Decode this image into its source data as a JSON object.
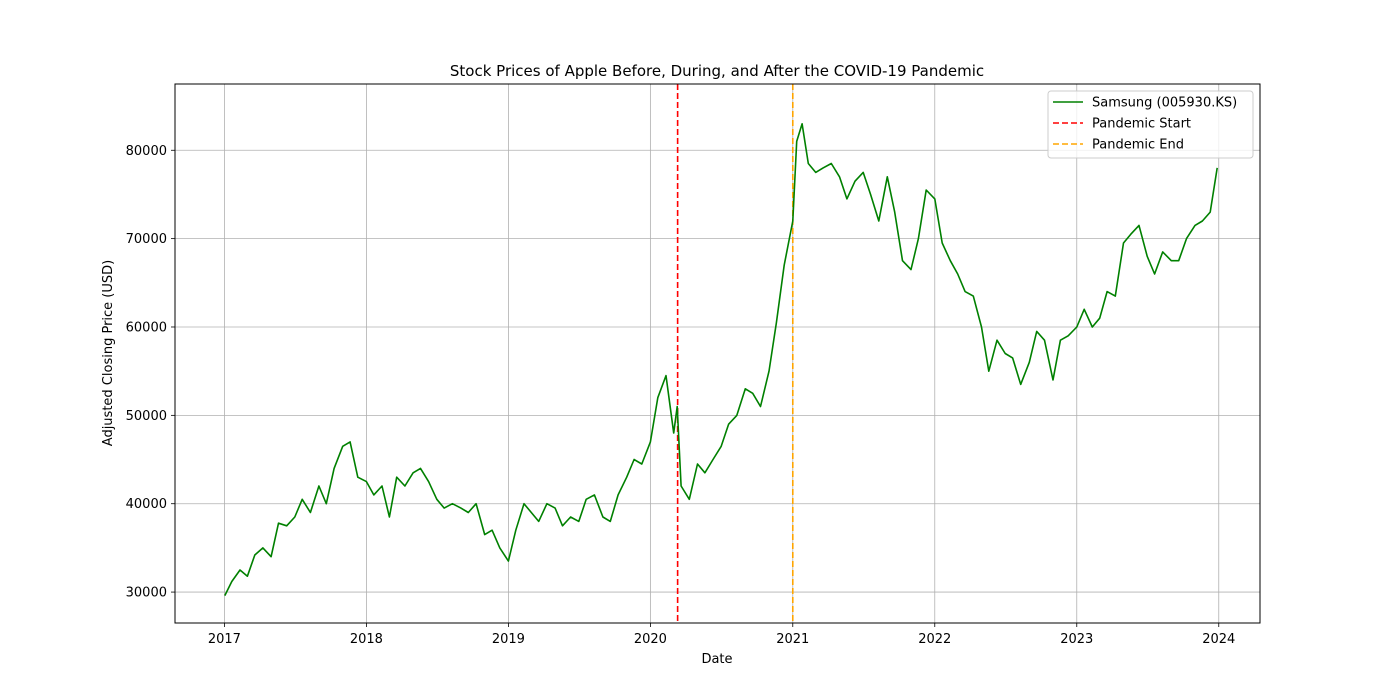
{
  "chart_data": {
    "type": "line",
    "title": "Stock Prices of Apple Before, During, and After the COVID-19 Pandemic",
    "xlabel": "Date",
    "ylabel": "Adjusted Closing Price (USD)",
    "xlim": [
      "2016-08-27",
      "2024-04-16"
    ],
    "ylim": [
      26500,
      87500
    ],
    "x_ticks": [
      "2017",
      "2018",
      "2019",
      "2020",
      "2021",
      "2022",
      "2023",
      "2024"
    ],
    "y_ticks": [
      30000,
      40000,
      50000,
      60000,
      70000,
      80000
    ],
    "y_tick_labels": [
      "30000",
      "40000",
      "50000",
      "60000",
      "70000",
      "80000"
    ],
    "grid": true,
    "legend_position": "top-right",
    "colors": {
      "series": "#008000",
      "pandemic_start": "#ff0000",
      "pandemic_end": "#ffa500",
      "grid": "#b0b0b0"
    },
    "series": [
      {
        "name": "Samsung (005930.KS)",
        "x": [
          "2017-01-02",
          "2017-01-20",
          "2017-02-10",
          "2017-03-01",
          "2017-03-20",
          "2017-04-10",
          "2017-05-01",
          "2017-05-20",
          "2017-06-10",
          "2017-07-01",
          "2017-07-20",
          "2017-08-10",
          "2017-09-01",
          "2017-09-20",
          "2017-10-10",
          "2017-11-01",
          "2017-11-20",
          "2017-12-10",
          "2018-01-01",
          "2018-01-20",
          "2018-02-10",
          "2018-03-01",
          "2018-03-20",
          "2018-04-10",
          "2018-05-01",
          "2018-05-20",
          "2018-06-10",
          "2018-07-01",
          "2018-07-20",
          "2018-08-10",
          "2018-09-01",
          "2018-09-20",
          "2018-10-10",
          "2018-11-01",
          "2018-11-20",
          "2018-12-10",
          "2019-01-01",
          "2019-01-20",
          "2019-02-10",
          "2019-03-01",
          "2019-03-20",
          "2019-04-10",
          "2019-05-01",
          "2019-05-20",
          "2019-06-10",
          "2019-07-01",
          "2019-07-20",
          "2019-08-10",
          "2019-09-01",
          "2019-09-20",
          "2019-10-10",
          "2019-11-01",
          "2019-11-20",
          "2019-12-10",
          "2020-01-01",
          "2020-01-20",
          "2020-02-10",
          "2020-03-01",
          "2020-03-10",
          "2020-03-20",
          "2020-04-10",
          "2020-05-01",
          "2020-05-20",
          "2020-06-10",
          "2020-07-01",
          "2020-07-20",
          "2020-08-10",
          "2020-09-01",
          "2020-09-20",
          "2020-10-10",
          "2020-11-01",
          "2020-11-20",
          "2020-12-10",
          "2021-01-01",
          "2021-01-11",
          "2021-01-25",
          "2021-02-10",
          "2021-03-01",
          "2021-03-20",
          "2021-04-10",
          "2021-05-01",
          "2021-05-20",
          "2021-06-10",
          "2021-07-01",
          "2021-07-20",
          "2021-08-10",
          "2021-09-01",
          "2021-09-20",
          "2021-10-10",
          "2021-11-01",
          "2021-11-20",
          "2021-12-10",
          "2022-01-01",
          "2022-01-20",
          "2022-02-10",
          "2022-03-01",
          "2022-03-20",
          "2022-04-10",
          "2022-05-01",
          "2022-05-20",
          "2022-06-10",
          "2022-07-01",
          "2022-07-20",
          "2022-08-10",
          "2022-09-01",
          "2022-09-20",
          "2022-10-10",
          "2022-11-01",
          "2022-11-20",
          "2022-12-10",
          "2023-01-01",
          "2023-01-20",
          "2023-02-10",
          "2023-03-01",
          "2023-03-20",
          "2023-04-10",
          "2023-05-01",
          "2023-05-20",
          "2023-06-10",
          "2023-07-01",
          "2023-07-20",
          "2023-08-10",
          "2023-09-01",
          "2023-09-20",
          "2023-10-10",
          "2023-11-01",
          "2023-11-20",
          "2023-12-10",
          "2023-12-28"
        ],
        "y": [
          29600,
          31200,
          32500,
          31800,
          34200,
          35000,
          34000,
          37800,
          37500,
          38500,
          40500,
          39000,
          42000,
          40000,
          44000,
          46500,
          47000,
          43000,
          42500,
          41000,
          42000,
          38500,
          43000,
          42000,
          43500,
          44000,
          42500,
          40500,
          39500,
          40000,
          39500,
          39000,
          40000,
          36500,
          37000,
          35000,
          33500,
          37000,
          40000,
          39000,
          38000,
          40000,
          39500,
          37500,
          38500,
          38000,
          40500,
          41000,
          38500,
          38000,
          41000,
          43000,
          45000,
          44500,
          47000,
          52000,
          54500,
          48000,
          51000,
          42000,
          40500,
          44500,
          43500,
          45000,
          46500,
          49000,
          50000,
          53000,
          52500,
          51000,
          55000,
          60500,
          67000,
          72000,
          81000,
          83000,
          78500,
          77500,
          78000,
          78500,
          77000,
          74500,
          76500,
          77500,
          75000,
          72000,
          77000,
          73000,
          67500,
          66500,
          70000,
          75500,
          74500,
          69500,
          67500,
          66000,
          64000,
          63500,
          60000,
          55000,
          58500,
          57000,
          56500,
          53500,
          56000,
          59500,
          58500,
          54000,
          58500,
          59000,
          60000,
          62000,
          60000,
          61000,
          64000,
          63500,
          69500,
          70500,
          71500,
          68000,
          66000,
          68500,
          67500,
          67500,
          70000,
          71500,
          72000,
          73000,
          78000
        ]
      }
    ],
    "annotations": [
      {
        "label": "Pandemic Start",
        "x": "2020-03-11",
        "style": "dashed"
      },
      {
        "label": "Pandemic End",
        "x": "2021-01-01",
        "style": "dashed"
      }
    ]
  }
}
